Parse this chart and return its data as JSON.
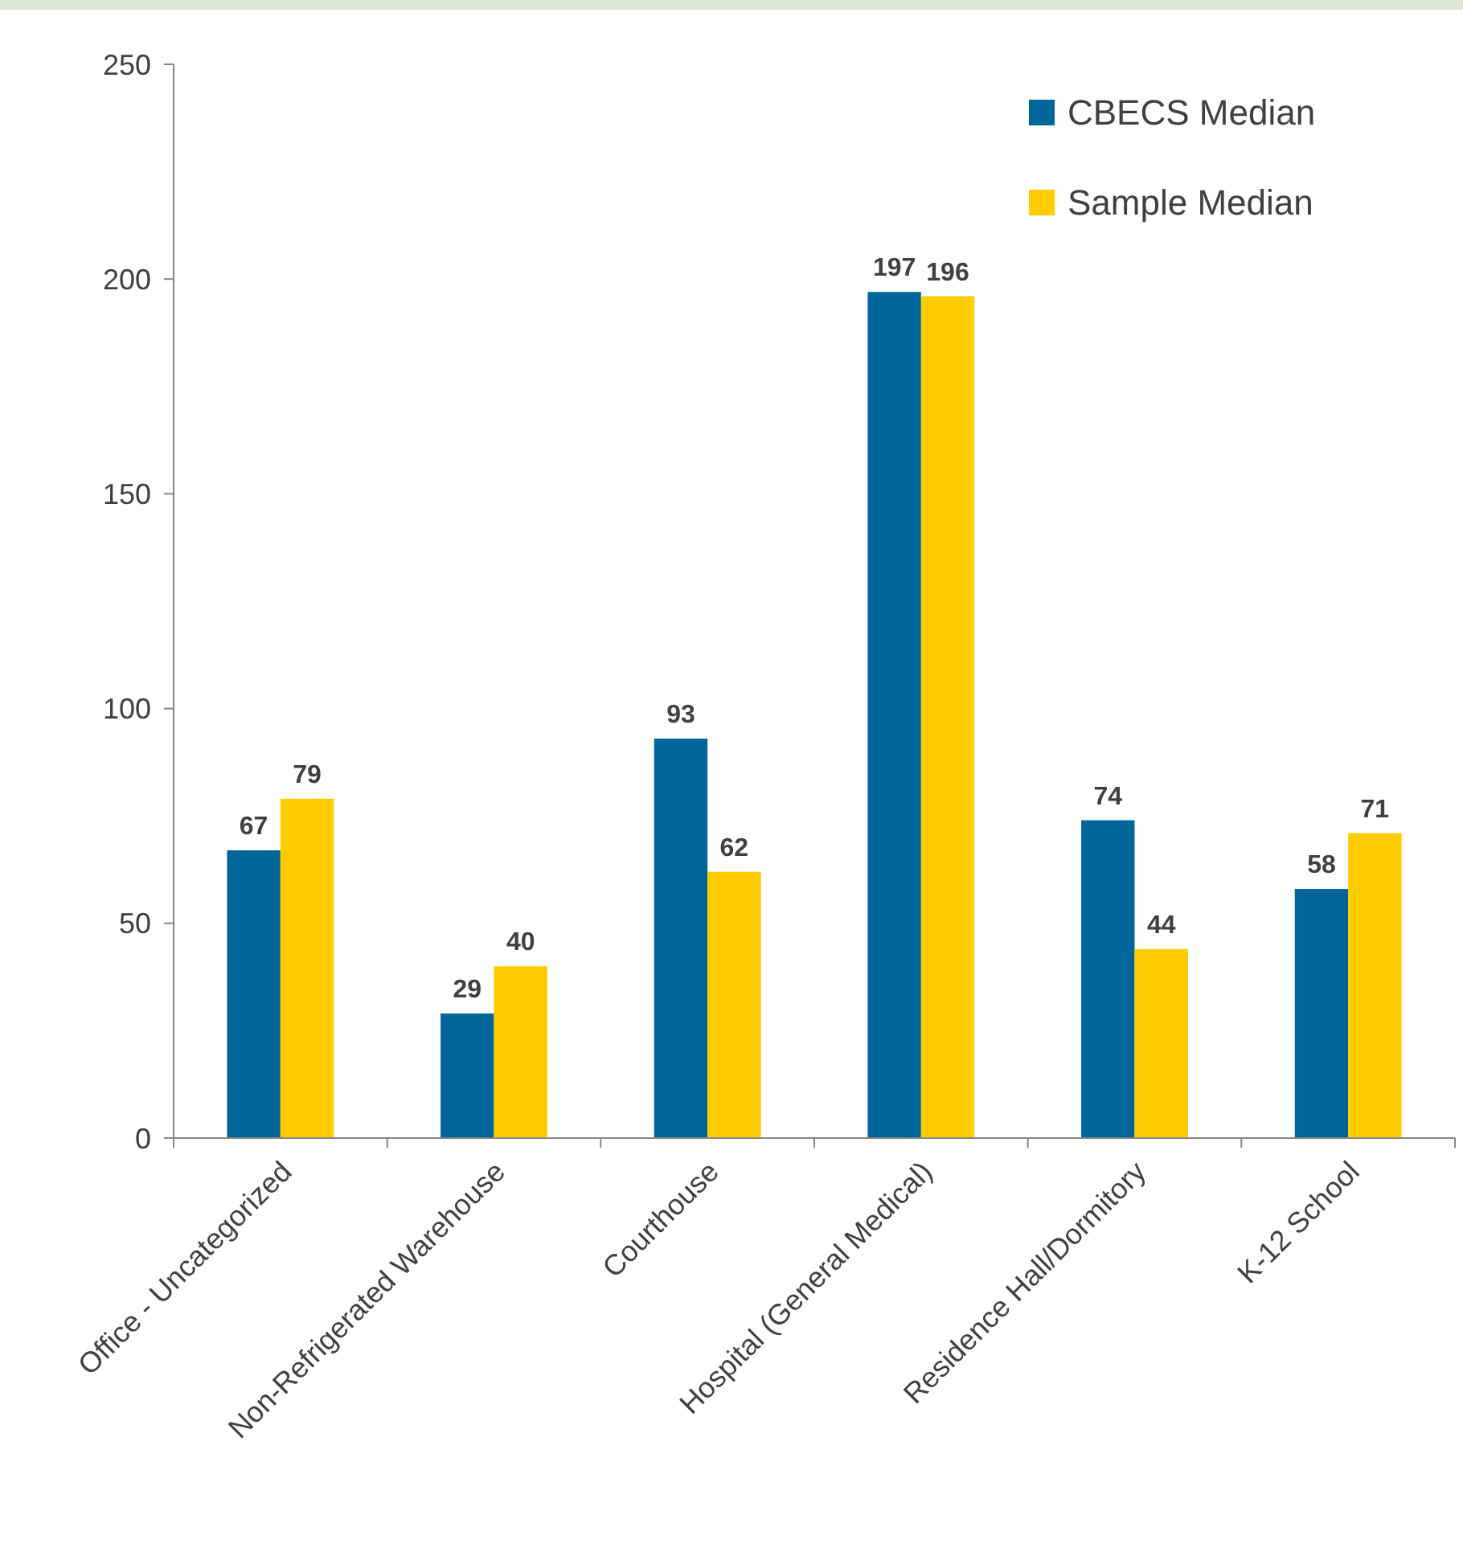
{
  "chart_data": {
    "type": "bar",
    "categories": [
      "Office - Uncategorized",
      "Non-Refrigerated Warehouse",
      "Courthouse",
      "Hospital (General Medical)",
      "Residence Hall/Dormitory",
      "K-12 School"
    ],
    "series": [
      {
        "name": "CBECS Median",
        "color": "#006699",
        "values": [
          67,
          29,
          93,
          197,
          74,
          58
        ]
      },
      {
        "name": "Sample Median",
        "color": "#ffcc00",
        "values": [
          79,
          40,
          62,
          196,
          44,
          71
        ]
      }
    ],
    "ylim": [
      0,
      250
    ],
    "yticks": [
      0,
      50,
      100,
      150,
      200,
      250
    ],
    "grid": false,
    "legend": "top right",
    "data_labels": true
  }
}
